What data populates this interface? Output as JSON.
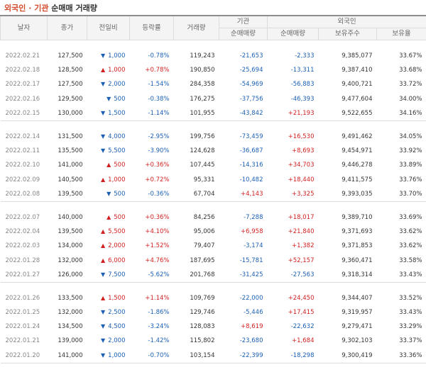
{
  "title_part1": "외국인 · 기관",
  "title_part2": "순매매 거래량",
  "headers": {
    "date": "날자",
    "close": "종가",
    "change": "전일비",
    "rate": "등락률",
    "volume": "거래량",
    "inst": "기관",
    "foreign": "외국인",
    "inst_net": "순매매량",
    "foreign_net": "순매매량",
    "holdings": "보유주수",
    "ratio": "보유율"
  },
  "colors": {
    "up": "#d11f1f",
    "down": "#1a5fb4",
    "title": "#d24a2a"
  },
  "arrows": {
    "up": "▲",
    "down": "▼"
  },
  "groups": [
    [
      {
        "date": "2022.02.21",
        "close": "127,500",
        "dir": "down",
        "change": "1,000",
        "rate": "-0.78%",
        "volume": "119,243",
        "inst": "-21,653",
        "foreign": "-2,333",
        "holdings": "9,385,077",
        "ratio": "33.67%"
      },
      {
        "date": "2022.02.18",
        "close": "128,500",
        "dir": "up",
        "change": "1,000",
        "rate": "+0.78%",
        "volume": "190,850",
        "inst": "-25,694",
        "foreign": "-13,311",
        "holdings": "9,387,410",
        "ratio": "33.68%"
      },
      {
        "date": "2022.02.17",
        "close": "127,500",
        "dir": "down",
        "change": "2,000",
        "rate": "-1.54%",
        "volume": "284,358",
        "inst": "-54,969",
        "foreign": "-56,883",
        "holdings": "9,400,721",
        "ratio": "33.72%"
      },
      {
        "date": "2022.02.16",
        "close": "129,500",
        "dir": "down",
        "change": "500",
        "rate": "-0.38%",
        "volume": "176,275",
        "inst": "-37,756",
        "foreign": "-46,393",
        "holdings": "9,477,604",
        "ratio": "34.00%"
      },
      {
        "date": "2022.02.15",
        "close": "130,000",
        "dir": "down",
        "change": "1,500",
        "rate": "-1.14%",
        "volume": "101,955",
        "inst": "-43,842",
        "foreign": "+21,193",
        "holdings": "9,522,655",
        "ratio": "34.16%"
      }
    ],
    [
      {
        "date": "2022.02.14",
        "close": "131,500",
        "dir": "down",
        "change": "4,000",
        "rate": "-2.95%",
        "volume": "199,756",
        "inst": "-73,459",
        "foreign": "+16,530",
        "holdings": "9,491,462",
        "ratio": "34.05%"
      },
      {
        "date": "2022.02.11",
        "close": "135,500",
        "dir": "down",
        "change": "5,500",
        "rate": "-3.90%",
        "volume": "124,628",
        "inst": "-36,687",
        "foreign": "+8,693",
        "holdings": "9,454,971",
        "ratio": "33.92%"
      },
      {
        "date": "2022.02.10",
        "close": "141,000",
        "dir": "up",
        "change": "500",
        "rate": "+0.36%",
        "volume": "107,445",
        "inst": "-14,316",
        "foreign": "+34,703",
        "holdings": "9,446,278",
        "ratio": "33.89%"
      },
      {
        "date": "2022.02.09",
        "close": "140,500",
        "dir": "up",
        "change": "1,000",
        "rate": "+0.72%",
        "volume": "95,331",
        "inst": "-10,482",
        "foreign": "+18,440",
        "holdings": "9,411,575",
        "ratio": "33.76%"
      },
      {
        "date": "2022.02.08",
        "close": "139,500",
        "dir": "down",
        "change": "500",
        "rate": "-0.36%",
        "volume": "67,704",
        "inst": "+4,143",
        "foreign": "+3,325",
        "holdings": "9,393,035",
        "ratio": "33.70%"
      }
    ],
    [
      {
        "date": "2022.02.07",
        "close": "140,000",
        "dir": "up",
        "change": "500",
        "rate": "+0.36%",
        "volume": "84,256",
        "inst": "-7,288",
        "foreign": "+18,017",
        "holdings": "9,389,710",
        "ratio": "33.69%"
      },
      {
        "date": "2022.02.04",
        "close": "139,500",
        "dir": "up",
        "change": "5,500",
        "rate": "+4.10%",
        "volume": "95,006",
        "inst": "+6,958",
        "foreign": "+21,840",
        "holdings": "9,371,693",
        "ratio": "33.62%"
      },
      {
        "date": "2022.02.03",
        "close": "134,000",
        "dir": "up",
        "change": "2,000",
        "rate": "+1.52%",
        "volume": "79,407",
        "inst": "-3,174",
        "foreign": "+1,382",
        "holdings": "9,371,853",
        "ratio": "33.62%"
      },
      {
        "date": "2022.01.28",
        "close": "132,000",
        "dir": "up",
        "change": "6,000",
        "rate": "+4.76%",
        "volume": "187,695",
        "inst": "-15,781",
        "foreign": "+52,157",
        "holdings": "9,360,471",
        "ratio": "33.58%"
      },
      {
        "date": "2022.01.27",
        "close": "126,000",
        "dir": "down",
        "change": "7,500",
        "rate": "-5.62%",
        "volume": "201,768",
        "inst": "-31,425",
        "foreign": "-27,563",
        "holdings": "9,318,314",
        "ratio": "33.43%"
      }
    ],
    [
      {
        "date": "2022.01.26",
        "close": "133,500",
        "dir": "up",
        "change": "1,500",
        "rate": "+1.14%",
        "volume": "109,769",
        "inst": "-22,000",
        "foreign": "+24,450",
        "holdings": "9,344,407",
        "ratio": "33.52%"
      },
      {
        "date": "2022.01.25",
        "close": "132,000",
        "dir": "down",
        "change": "2,500",
        "rate": "-1.86%",
        "volume": "129,746",
        "inst": "-5,446",
        "foreign": "+17,415",
        "holdings": "9,319,957",
        "ratio": "33.43%"
      },
      {
        "date": "2022.01.24",
        "close": "134,500",
        "dir": "down",
        "change": "4,500",
        "rate": "-3.24%",
        "volume": "128,083",
        "inst": "+8,619",
        "foreign": "-22,632",
        "holdings": "9,279,471",
        "ratio": "33.29%"
      },
      {
        "date": "2022.01.21",
        "close": "139,000",
        "dir": "down",
        "change": "2,000",
        "rate": "-1.42%",
        "volume": "115,802",
        "inst": "-23,680",
        "foreign": "+1,684",
        "holdings": "9,302,103",
        "ratio": "33.37%"
      },
      {
        "date": "2022.01.20",
        "close": "141,000",
        "dir": "down",
        "change": "1,000",
        "rate": "-0.70%",
        "volume": "103,154",
        "inst": "-22,399",
        "foreign": "-18,298",
        "holdings": "9,300,419",
        "ratio": "33.36%"
      }
    ]
  ]
}
